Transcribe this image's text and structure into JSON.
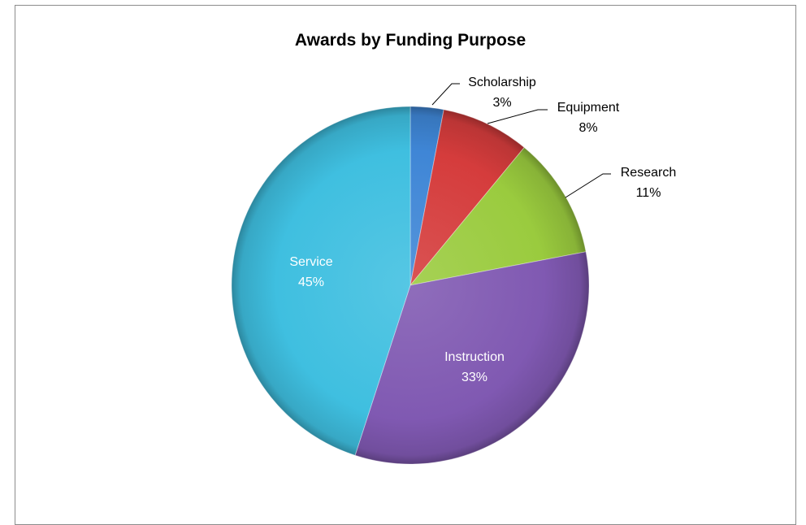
{
  "chart_data": {
    "type": "pie",
    "title": "Awards by Funding Purpose",
    "slices": [
      {
        "label": "Scholarship",
        "percent_label": "3%",
        "value": 3,
        "color": "#3f86d6"
      },
      {
        "label": "Equipment",
        "percent_label": "8%",
        "value": 8,
        "color": "#d53c3c"
      },
      {
        "label": "Research",
        "percent_label": "11%",
        "value": 11,
        "color": "#9acb3e"
      },
      {
        "label": "Instruction",
        "percent_label": "33%",
        "value": 33,
        "color": "#8059b2"
      },
      {
        "label": "Service",
        "percent_label": "45%",
        "value": 45,
        "color": "#3fbfe0"
      }
    ],
    "label_placement": [
      "outside",
      "outside",
      "outside",
      "inside",
      "inside"
    ],
    "legend": false
  }
}
